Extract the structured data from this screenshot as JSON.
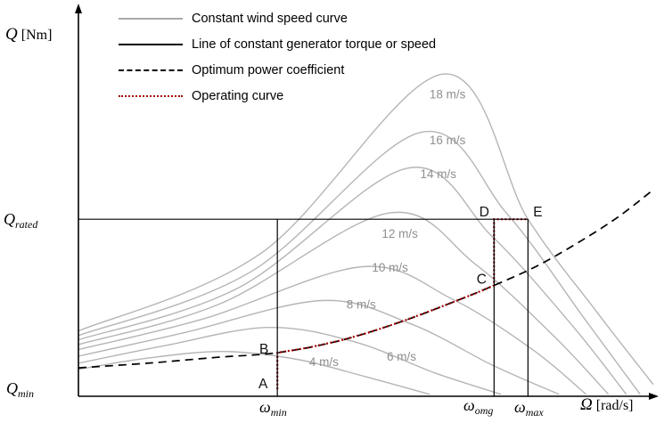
{
  "colors": {
    "wind_curve": "#b5b5b5",
    "wind_label": "#8f8f8f",
    "optimum": "#000000",
    "operating": "#a00000",
    "axis": "#000000",
    "reference_line": "#000000",
    "point_label": "#111111"
  },
  "legend": {
    "items": [
      {
        "label": "Constant wind speed curve",
        "style": "solid-gray"
      },
      {
        "label": "Line of constant generator torque or speed",
        "style": "solid-black"
      },
      {
        "label": "Optimum power coefficient",
        "style": "dashed-black"
      },
      {
        "label": "Operating curve",
        "style": "dotted-red"
      }
    ]
  },
  "axes": {
    "y_title": {
      "symbol": "Q",
      "unit": "[Nm]"
    },
    "x_title": {
      "symbol": "Ω",
      "unit": "[rad/s]"
    },
    "q_rated": {
      "symbol": "Q",
      "sub": "rated"
    },
    "q_min": {
      "symbol": "Q",
      "sub": "min"
    },
    "omega_min": {
      "symbol": "ω",
      "sub": "min"
    },
    "omega_omg": {
      "symbol": "ω",
      "sub": "omg"
    },
    "omega_max": {
      "symbol": "ω",
      "sub": "max"
    }
  },
  "chart_data": {
    "type": "line",
    "title": "",
    "xlabel": "Ω [rad/s]",
    "ylabel": "Q [Nm]",
    "xlim": [
      0,
      10
    ],
    "ylim": [
      0,
      10
    ],
    "grid": false,
    "legend_position": "top-left",
    "axis_ticks": {
      "x": [
        {
          "label": "ω_min",
          "omega": 3.46
        },
        {
          "label": "ω_omg",
          "omega": 7.23
        },
        {
          "label": "ω_max",
          "omega": 7.82
        }
      ],
      "y": [
        {
          "label": "Q_rated",
          "q": 4.55
        },
        {
          "label": "Q_min",
          "q": 0.18
        }
      ]
    },
    "wind_curves": [
      {
        "label": "4 m/s",
        "label_pos": [
          4.27,
          0.78
        ],
        "points": [
          [
            0,
            0.69
          ],
          [
            1.2,
            0.98
          ],
          [
            2.52,
            1.15
          ],
          [
            3.8,
            0.95
          ],
          [
            5.0,
            0.5
          ],
          [
            6.11,
            0.05
          ]
        ]
      },
      {
        "label": "6 m/s",
        "label_pos": [
          5.62,
          0.92
        ],
        "points": [
          [
            0,
            0.85
          ],
          [
            1.5,
            1.3
          ],
          [
            3.3,
            1.77
          ],
          [
            4.8,
            1.4
          ],
          [
            6.2,
            0.6
          ],
          [
            7.35,
            0.05
          ]
        ]
      },
      {
        "label": "8 m/s",
        "label_pos": [
          4.92,
          2.25
        ],
        "points": [
          [
            0,
            1.03
          ],
          [
            1.8,
            1.62
          ],
          [
            4.24,
            2.46
          ],
          [
            5.8,
            1.85
          ],
          [
            7.2,
            0.8
          ],
          [
            8.36,
            0.05
          ]
        ]
      },
      {
        "label": "10 m/s",
        "label_pos": [
          5.42,
          3.2
        ],
        "points": [
          [
            0,
            1.2
          ],
          [
            2.2,
            2.0
          ],
          [
            4.94,
            3.33
          ],
          [
            6.5,
            2.5
          ],
          [
            7.9,
            1.2
          ],
          [
            8.83,
            0.05
          ]
        ]
      },
      {
        "label": "12 m/s",
        "label_pos": [
          5.59,
          4.07
        ],
        "points": [
          [
            0,
            1.33
          ],
          [
            2.5,
            2.4
          ],
          [
            5.4,
            4.71
          ],
          [
            6.9,
            3.4
          ],
          [
            8.3,
            1.5
          ],
          [
            9.22,
            0.05
          ]
        ]
      },
      {
        "label": "14 m/s",
        "label_pos": [
          6.26,
          5.61
        ],
        "points": [
          [
            0,
            1.45
          ],
          [
            2.8,
            2.8
          ],
          [
            5.72,
            5.86
          ],
          [
            7.2,
            4.1
          ],
          [
            8.6,
            1.8
          ],
          [
            9.53,
            0.05
          ]
        ]
      },
      {
        "label": "16 m/s",
        "label_pos": [
          6.42,
          6.48
        ],
        "points": [
          [
            0,
            1.56
          ],
          [
            3.0,
            3.2
          ],
          [
            5.95,
            6.78
          ],
          [
            7.45,
            4.7
          ],
          [
            8.8,
            2.0
          ],
          [
            9.77,
            0.05
          ]
        ]
      },
      {
        "label": "18 m/s",
        "label_pos": [
          6.42,
          7.66
        ],
        "points": [
          [
            0,
            1.68
          ],
          [
            3.2,
            3.7
          ],
          [
            6.34,
            8.28
          ],
          [
            7.82,
            4.55
          ],
          [
            9.0,
            2.2
          ],
          [
            10.0,
            0.3
          ]
        ]
      }
    ],
    "optimum_curve": {
      "points": [
        [
          0,
          0.73
        ],
        [
          1.2,
          0.85
        ],
        [
          2.4,
          1.0
        ],
        [
          3.46,
          1.12
        ],
        [
          4.55,
          1.43
        ],
        [
          5.64,
          1.93
        ],
        [
          6.57,
          2.45
        ],
        [
          7.23,
          2.85
        ],
        [
          7.98,
          3.35
        ],
        [
          8.75,
          4.0
        ],
        [
          9.4,
          4.62
        ],
        [
          9.95,
          5.25
        ]
      ]
    },
    "operating_curve": {
      "points": [
        [
          3.46,
          0.18
        ],
        [
          3.46,
          1.12
        ],
        [
          4.0,
          1.25
        ],
        [
          4.55,
          1.43
        ],
        [
          5.1,
          1.66
        ],
        [
          5.64,
          1.93
        ],
        [
          6.1,
          2.18
        ],
        [
          6.57,
          2.45
        ],
        [
          6.9,
          2.64
        ],
        [
          7.23,
          2.85
        ],
        [
          7.23,
          4.55
        ],
        [
          7.82,
          4.55
        ]
      ]
    },
    "reference_lines": {
      "q_rated": 4.55,
      "q_rated_end_omega": 7.82,
      "vertical_omegas": [
        3.46,
        7.23,
        7.82
      ]
    },
    "point_labels": [
      {
        "label": "A",
        "omega": 3.46,
        "q": 0.18
      },
      {
        "label": "B",
        "omega": 3.46,
        "q": 1.12
      },
      {
        "label": "C",
        "omega": 7.23,
        "q": 2.85
      },
      {
        "label": "D",
        "omega": 7.23,
        "q": 4.55
      },
      {
        "label": "E",
        "omega": 7.82,
        "q": 4.55
      }
    ]
  }
}
